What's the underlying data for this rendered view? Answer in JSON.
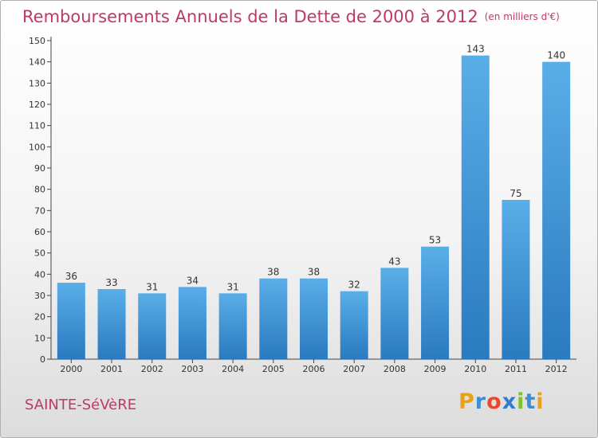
{
  "title": "Remboursements Annuels de la Dette de 2000 à 2012",
  "unit_note": "(en milliers d'€)",
  "commune": "SAINTE-SéVèRE",
  "logo": {
    "letters": [
      "P",
      "r",
      "o",
      "x",
      "i",
      "t",
      "i"
    ],
    "colors": [
      "#e8a21a",
      "#3a8fd6",
      "#e84a2a",
      "#2f7fd0",
      "#7fbf2a",
      "#3a8fd6",
      "#e8a21a"
    ]
  },
  "colors": {
    "title": "#c0386a",
    "bar_top": "#5aaee8",
    "bar_bottom": "#2a7abf"
  },
  "chart_data": {
    "type": "bar",
    "categories": [
      "2000",
      "2001",
      "2002",
      "2003",
      "2004",
      "2005",
      "2006",
      "2007",
      "2008",
      "2009",
      "2010",
      "2011",
      "2012"
    ],
    "values": [
      36,
      33,
      31,
      34,
      31,
      38,
      38,
      32,
      43,
      53,
      143,
      75,
      140
    ],
    "ylim": [
      0,
      150
    ],
    "yticks": [
      0,
      10,
      20,
      30,
      40,
      50,
      60,
      70,
      80,
      90,
      100,
      110,
      120,
      130,
      140,
      150
    ],
    "data_labels": true,
    "grid": false,
    "legend": "none"
  }
}
